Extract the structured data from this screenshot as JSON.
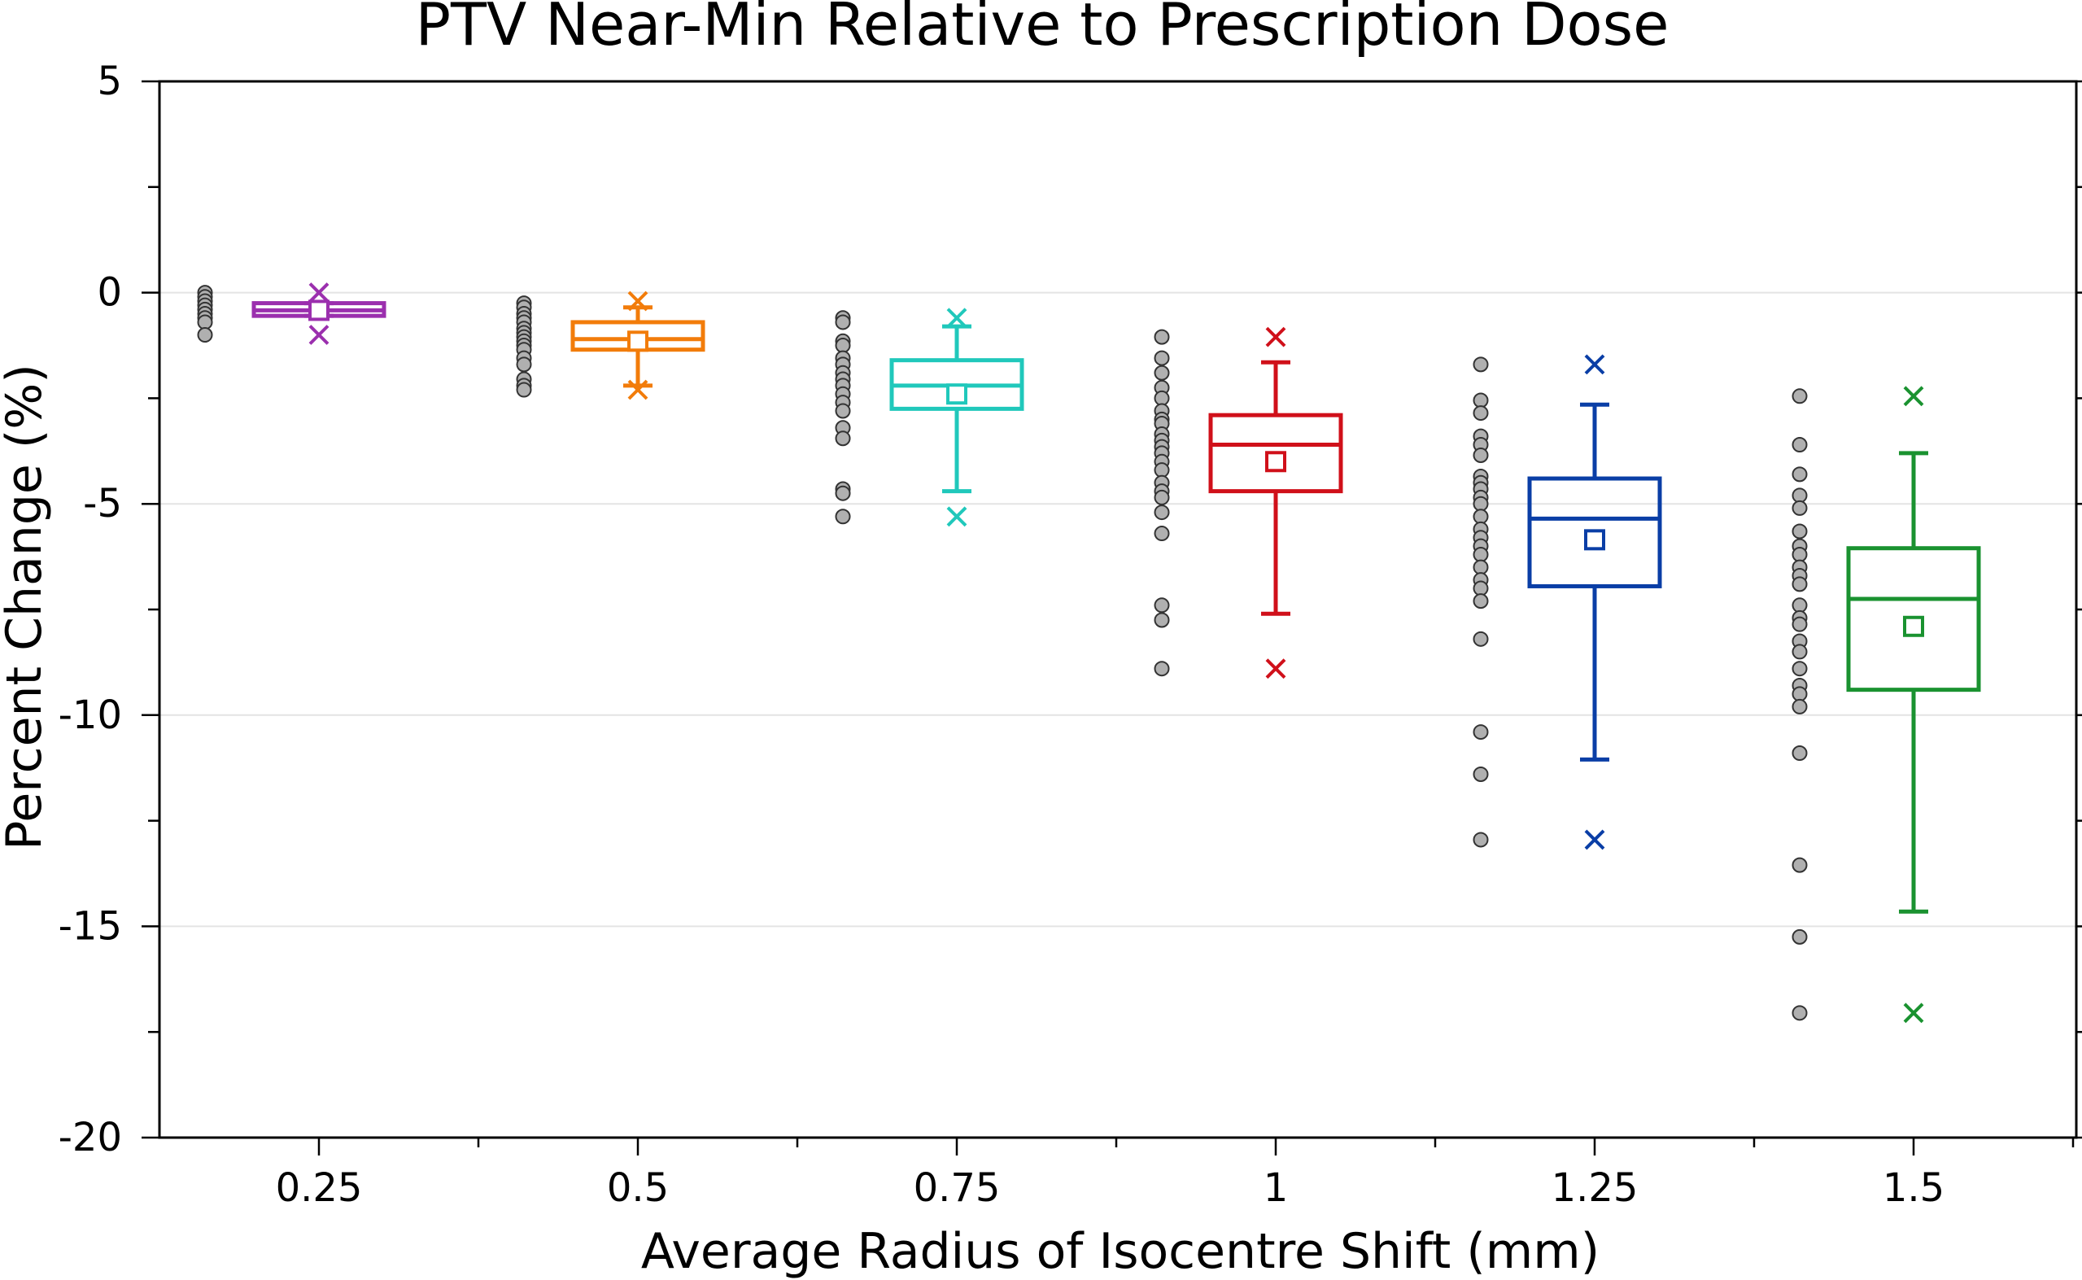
{
  "chart_data": {
    "type": "box",
    "title": "PTV Near-Min Relative to Prescription Dose",
    "xlabel": "Average Radius of Isocentre Shift (mm)",
    "ylabel": "Percent Change (%)",
    "ylim": [
      -20,
      5
    ],
    "yticks": [
      5,
      0,
      -5,
      -10,
      -15,
      -20
    ],
    "ytick_labels": [
      "5",
      "0",
      "-5",
      "-10",
      "-15",
      "-20"
    ],
    "minor_ytick_step": 2.5,
    "gridlines_y": [
      0,
      -5,
      -10,
      -15
    ],
    "categories": [
      "0.25",
      "0.5",
      "0.75",
      "1",
      "1.25",
      "1.5"
    ],
    "series": [
      {
        "name": "0.25",
        "color": "#9b2fae",
        "q1": -0.55,
        "median": -0.42,
        "q3": -0.25,
        "whisker_low": -0.55,
        "whisker_high": -0.25,
        "mean": -0.42,
        "min": -1.0,
        "max": 0.0,
        "points": [
          0.0,
          -0.1,
          -0.2,
          -0.3,
          -0.4,
          -0.5,
          -0.6,
          -0.7,
          -1.0
        ]
      },
      {
        "name": "0.5",
        "color": "#f27c0a",
        "q1": -1.35,
        "median": -1.1,
        "q3": -0.7,
        "whisker_low": -2.2,
        "whisker_high": -0.35,
        "mean": -1.15,
        "min": -2.3,
        "max": -0.2,
        "points": [
          -0.25,
          -0.35,
          -0.5,
          -0.6,
          -0.7,
          -0.85,
          -0.95,
          -1.05,
          -1.15,
          -1.25,
          -1.35,
          -1.55,
          -1.7,
          -2.05,
          -2.2,
          -2.3
        ]
      },
      {
        "name": "0.75",
        "color": "#20c8bb",
        "q1": -2.75,
        "median": -2.2,
        "q3": -1.6,
        "whisker_low": -4.7,
        "whisker_high": -0.8,
        "mean": -2.4,
        "min": -5.3,
        "max": -0.6,
        "points": [
          -0.6,
          -0.7,
          -1.15,
          -1.25,
          -1.55,
          -1.7,
          -1.9,
          -2.05,
          -2.2,
          -2.4,
          -2.6,
          -2.8,
          -3.2,
          -3.45,
          -4.65,
          -4.75,
          -5.3
        ]
      },
      {
        "name": "1",
        "color": "#d0101a",
        "q1": -4.7,
        "median": -3.6,
        "q3": -2.9,
        "whisker_low": -7.6,
        "whisker_high": -1.65,
        "mean": -4.0,
        "min": -8.9,
        "max": -1.05,
        "points": [
          -1.05,
          -1.55,
          -1.9,
          -2.25,
          -2.5,
          -2.8,
          -3.0,
          -3.1,
          -3.35,
          -3.5,
          -3.65,
          -3.8,
          -4.0,
          -4.2,
          -4.5,
          -4.7,
          -4.85,
          -5.2,
          -5.7,
          -7.4,
          -7.75,
          -8.9
        ]
      },
      {
        "name": "1.25",
        "color": "#0a3ea6",
        "q1": -6.95,
        "median": -5.35,
        "q3": -4.4,
        "whisker_low": -11.05,
        "whisker_high": -2.65,
        "mean": -5.85,
        "min": -12.95,
        "max": -1.7,
        "points": [
          -1.7,
          -2.55,
          -2.85,
          -3.4,
          -3.6,
          -3.85,
          -4.35,
          -4.5,
          -4.65,
          -4.85,
          -5.0,
          -5.3,
          -5.6,
          -5.8,
          -6.0,
          -6.2,
          -6.5,
          -6.8,
          -7.0,
          -7.3,
          -8.2,
          -10.4,
          -11.4,
          -12.95
        ]
      },
      {
        "name": "1.5",
        "color": "#1a9230",
        "q1": -9.4,
        "median": -7.25,
        "q3": -6.05,
        "whisker_low": -14.65,
        "whisker_high": -3.8,
        "mean": -7.9,
        "min": -17.05,
        "max": -2.45,
        "points": [
          -2.45,
          -3.6,
          -4.3,
          -4.8,
          -5.1,
          -5.65,
          -6.0,
          -6.2,
          -6.5,
          -6.7,
          -6.9,
          -7.4,
          -7.7,
          -7.85,
          -8.25,
          -8.5,
          -8.9,
          -9.3,
          -9.5,
          -9.8,
          -10.9,
          -13.55,
          -15.25,
          -17.05
        ]
      }
    ]
  }
}
